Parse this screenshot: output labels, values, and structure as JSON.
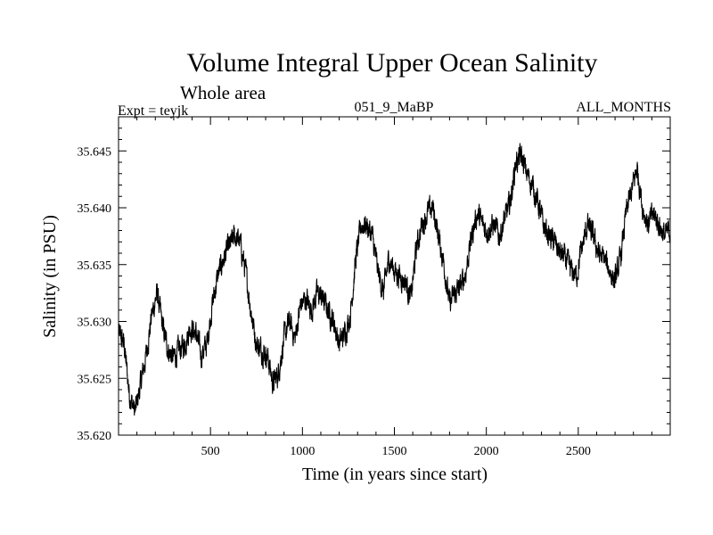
{
  "chart_data": {
    "type": "line",
    "title": "Volume Integral Upper Ocean Salinity",
    "subtitle": "Whole area",
    "experiment_label": "Expt = teyjk",
    "run_label": "051_9_MaBP",
    "months_label": "ALL_MONTHS",
    "xlabel": "Time (in years since start)",
    "ylabel": "Salinity (in PSU)",
    "xlim": [
      0,
      3000
    ],
    "ylim": [
      35.62,
      35.648
    ],
    "xticks": [
      500,
      1000,
      1500,
      2000,
      2500
    ],
    "xtick_labels": [
      "500",
      "1000",
      "1500",
      "2000",
      "2500"
    ],
    "yticks": [
      35.62,
      35.625,
      35.63,
      35.635,
      35.64,
      35.645
    ],
    "ytick_labels": [
      "35.620",
      "35.625",
      "35.630",
      "35.635",
      "35.640",
      "35.645"
    ],
    "series": [
      {
        "name": "salinity",
        "x": [
          0,
          30,
          60,
          90,
          120,
          150,
          180,
          210,
          240,
          270,
          300,
          330,
          360,
          390,
          420,
          450,
          480,
          510,
          540,
          570,
          600,
          630,
          660,
          690,
          720,
          750,
          780,
          810,
          840,
          870,
          900,
          930,
          960,
          990,
          1020,
          1050,
          1080,
          1110,
          1140,
          1170,
          1200,
          1230,
          1260,
          1290,
          1320,
          1350,
          1380,
          1410,
          1440,
          1470,
          1500,
          1530,
          1560,
          1590,
          1620,
          1650,
          1680,
          1710,
          1740,
          1770,
          1800,
          1830,
          1860,
          1890,
          1920,
          1950,
          1980,
          2010,
          2040,
          2070,
          2100,
          2130,
          2160,
          2190,
          2220,
          2250,
          2280,
          2310,
          2340,
          2370,
          2400,
          2430,
          2460,
          2490,
          2520,
          2550,
          2580,
          2610,
          2640,
          2670,
          2700,
          2730,
          2760,
          2790,
          2820,
          2850,
          2880,
          2910,
          2940,
          2970,
          3000
        ],
        "values": [
          35.629,
          35.628,
          35.6235,
          35.622,
          35.6245,
          35.627,
          35.6305,
          35.6325,
          35.6295,
          35.6275,
          35.6268,
          35.6275,
          35.628,
          35.6295,
          35.629,
          35.627,
          35.628,
          35.6315,
          35.634,
          35.6355,
          35.6365,
          35.6375,
          35.637,
          35.6345,
          35.631,
          35.628,
          35.6275,
          35.627,
          35.6245,
          35.6255,
          35.6285,
          35.63,
          35.6285,
          35.6315,
          35.632,
          35.631,
          35.6325,
          35.632,
          35.631,
          35.63,
          35.628,
          35.629,
          35.6305,
          35.6355,
          35.6385,
          35.6385,
          35.6375,
          35.6345,
          35.6325,
          35.6355,
          35.6345,
          35.634,
          35.6335,
          35.632,
          35.6365,
          35.6385,
          35.6395,
          35.64,
          35.6375,
          35.635,
          35.6315,
          35.6325,
          35.633,
          35.6345,
          35.6375,
          35.6395,
          35.6385,
          35.638,
          35.6385,
          35.6375,
          35.639,
          35.6405,
          35.644,
          35.6445,
          35.643,
          35.642,
          35.6405,
          35.6385,
          35.6375,
          35.637,
          35.636,
          35.6355,
          35.6345,
          35.634,
          35.6365,
          35.6385,
          35.6375,
          35.636,
          35.6355,
          35.6345,
          35.6335,
          35.6355,
          35.6395,
          35.6415,
          35.6435,
          35.64,
          35.6385,
          35.6395,
          35.6385,
          35.6375,
          35.638
        ]
      }
    ],
    "line_color": "#000000"
  }
}
